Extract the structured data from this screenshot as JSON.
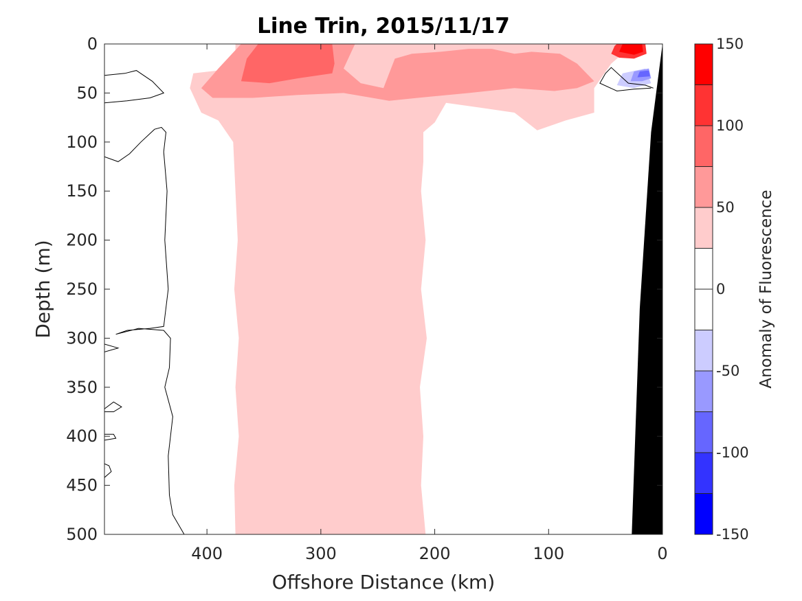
{
  "chart_data": {
    "type": "heatmap",
    "title": "Line Trin, 2015/11/17",
    "xlabel": "Offshore Distance (km)",
    "ylabel": "Depth (m)",
    "xlim": [
      490,
      0
    ],
    "ylim": [
      500,
      0
    ],
    "x_ticks": [
      400,
      300,
      200,
      100,
      0
    ],
    "y_ticks": [
      0,
      50,
      100,
      150,
      200,
      250,
      300,
      350,
      400,
      450,
      500
    ],
    "colorbar": {
      "label": "Anomaly of Fluorescence",
      "range": [
        -150,
        150
      ],
      "ticks": [
        150,
        100,
        50,
        0,
        -50,
        -100,
        -150
      ],
      "levels": [
        {
          "min": 125,
          "max": 150,
          "color": "#ff0000"
        },
        {
          "min": 100,
          "max": 125,
          "color": "#ff3333"
        },
        {
          "min": 75,
          "max": 100,
          "color": "#ff6666"
        },
        {
          "min": 50,
          "max": 75,
          "color": "#ff9999"
        },
        {
          "min": 25,
          "max": 50,
          "color": "#ffcccc"
        },
        {
          "min": 0,
          "max": 25,
          "color": "#ffffff"
        },
        {
          "min": -25,
          "max": 0,
          "color": "#ffffff"
        },
        {
          "min": -50,
          "max": -25,
          "color": "#ccccff"
        },
        {
          "min": -75,
          "max": -50,
          "color": "#9999ff"
        },
        {
          "min": -100,
          "max": -75,
          "color": "#6666ff"
        },
        {
          "min": -125,
          "max": -100,
          "color": "#3333ff"
        },
        {
          "min": -150,
          "max": -125,
          "color": "#0000ff"
        }
      ]
    },
    "regions": [
      {
        "level": 25,
        "color": "#ffcccc",
        "points": [
          [
            375,
            500
          ],
          [
            376,
            450
          ],
          [
            372,
            400
          ],
          [
            375,
            350
          ],
          [
            372,
            300
          ],
          [
            376,
            250
          ],
          [
            373,
            200
          ],
          [
            375,
            150
          ],
          [
            377,
            100
          ],
          [
            390,
            78
          ],
          [
            405,
            70
          ],
          [
            415,
            45
          ],
          [
            412,
            30
          ],
          [
            375,
            25
          ],
          [
            375,
            0
          ],
          [
            25,
            0
          ],
          [
            45,
            20
          ],
          [
            60,
            45
          ],
          [
            60,
            70
          ],
          [
            85,
            78
          ],
          [
            110,
            88
          ],
          [
            130,
            70
          ],
          [
            160,
            65
          ],
          [
            190,
            60
          ],
          [
            200,
            80
          ],
          [
            210,
            90
          ],
          [
            210,
            120
          ],
          [
            212,
            150
          ],
          [
            208,
            200
          ],
          [
            212,
            250
          ],
          [
            207,
            300
          ],
          [
            213,
            350
          ],
          [
            210,
            400
          ],
          [
            212,
            450
          ],
          [
            208,
            500
          ]
        ]
      },
      {
        "level": 50,
        "color": "#ff9999",
        "points": [
          [
            405,
            45
          ],
          [
            390,
            25
          ],
          [
            370,
            0
          ],
          [
            270,
            0
          ],
          [
            280,
            25
          ],
          [
            265,
            40
          ],
          [
            245,
            45
          ],
          [
            240,
            30
          ],
          [
            235,
            15
          ],
          [
            220,
            10
          ],
          [
            195,
            8
          ],
          [
            170,
            5
          ],
          [
            150,
            5
          ],
          [
            130,
            10
          ],
          [
            115,
            8
          ],
          [
            90,
            10
          ],
          [
            75,
            20
          ],
          [
            60,
            38
          ],
          [
            75,
            45
          ],
          [
            95,
            48
          ],
          [
            130,
            45
          ],
          [
            170,
            50
          ],
          [
            215,
            55
          ],
          [
            240,
            58
          ],
          [
            280,
            50
          ],
          [
            320,
            52
          ],
          [
            360,
            55
          ],
          [
            395,
            55
          ]
        ]
      },
      {
        "level": 75,
        "color": "#ff6666",
        "points": [
          [
            370,
            38
          ],
          [
            365,
            15
          ],
          [
            355,
            0
          ],
          [
            290,
            0
          ],
          [
            288,
            20
          ],
          [
            290,
            30
          ],
          [
            320,
            35
          ],
          [
            345,
            40
          ]
        ]
      },
      {
        "level": 100,
        "color": "#ff3333",
        "points": [
          [
            45,
            10
          ],
          [
            42,
            2
          ],
          [
            40,
            0
          ],
          [
            15,
            0
          ],
          [
            14,
            10
          ],
          [
            25,
            15
          ],
          [
            38,
            14
          ]
        ]
      },
      {
        "level": 125,
        "color": "#ff0000",
        "points": [
          [
            38,
            8
          ],
          [
            35,
            0
          ],
          [
            18,
            0
          ],
          [
            17,
            8
          ],
          [
            25,
            11
          ]
        ]
      },
      {
        "level": -25,
        "color": "#ccccff",
        "points": [
          [
            40,
            42
          ],
          [
            35,
            30
          ],
          [
            15,
            25
          ],
          [
            10,
            40
          ],
          [
            25,
            45
          ]
        ]
      },
      {
        "level": -50,
        "color": "#9999ff",
        "points": [
          [
            28,
            38
          ],
          [
            25,
            28
          ],
          [
            12,
            25
          ],
          [
            10,
            35
          ],
          [
            18,
            38
          ]
        ]
      },
      {
        "level": -75,
        "color": "#6666ff",
        "points": [
          [
            22,
            34
          ],
          [
            20,
            28
          ],
          [
            12,
            27
          ],
          [
            11,
            33
          ]
        ]
      }
    ],
    "contour_lines": [
      {
        "level": 0,
        "points": [
          [
            490,
            32
          ],
          [
            472,
            30
          ],
          [
            462,
            27
          ],
          [
            448,
            38
          ],
          [
            438,
            50
          ],
          [
            450,
            55
          ],
          [
            470,
            58
          ],
          [
            490,
            60
          ]
        ]
      },
      {
        "level": 0,
        "points": [
          [
            490,
            115
          ],
          [
            478,
            120
          ],
          [
            468,
            112
          ],
          [
            458,
            100
          ],
          [
            446,
            87
          ],
          [
            440,
            85
          ],
          [
            436,
            90
          ],
          [
            438,
            110
          ],
          [
            435,
            150
          ],
          [
            437,
            200
          ],
          [
            434,
            250
          ],
          [
            438,
            288
          ],
          [
            450,
            290
          ],
          [
            470,
            292
          ],
          [
            480,
            296
          ],
          [
            460,
            290
          ],
          [
            438,
            292
          ],
          [
            432,
            300
          ],
          [
            433,
            330
          ],
          [
            437,
            350
          ],
          [
            430,
            380
          ],
          [
            434,
            420
          ],
          [
            433,
            460
          ],
          [
            430,
            480
          ],
          [
            420,
            500
          ]
        ]
      },
      {
        "level": 0,
        "points": [
          [
            490,
            372
          ],
          [
            482,
            365
          ],
          [
            475,
            370
          ],
          [
            482,
            375
          ],
          [
            490,
            375
          ]
        ]
      },
      {
        "level": 0,
        "points": [
          [
            490,
            398
          ],
          [
            482,
            398
          ],
          [
            480,
            402
          ],
          [
            490,
            404
          ]
        ]
      },
      {
        "level": 0,
        "points": [
          [
            490,
            428
          ],
          [
            486,
            430
          ],
          [
            484,
            436
          ],
          [
            490,
            442
          ]
        ]
      },
      {
        "level": 0,
        "points": [
          [
            490,
            306
          ],
          [
            478,
            310
          ],
          [
            490,
            314
          ]
        ]
      },
      {
        "level": 0,
        "points": [
          [
            8,
            45
          ],
          [
            15,
            42
          ],
          [
            30,
            40
          ],
          [
            45,
            24
          ],
          [
            50,
            30
          ],
          [
            55,
            40
          ],
          [
            40,
            48
          ],
          [
            25,
            46
          ],
          [
            10,
            45
          ]
        ]
      }
    ],
    "bathymetry": {
      "color": "#000000",
      "points": [
        [
          0,
          0
        ],
        [
          10,
          90
        ],
        [
          20,
          270
        ],
        [
          27,
          500
        ],
        [
          0,
          500
        ]
      ]
    }
  }
}
